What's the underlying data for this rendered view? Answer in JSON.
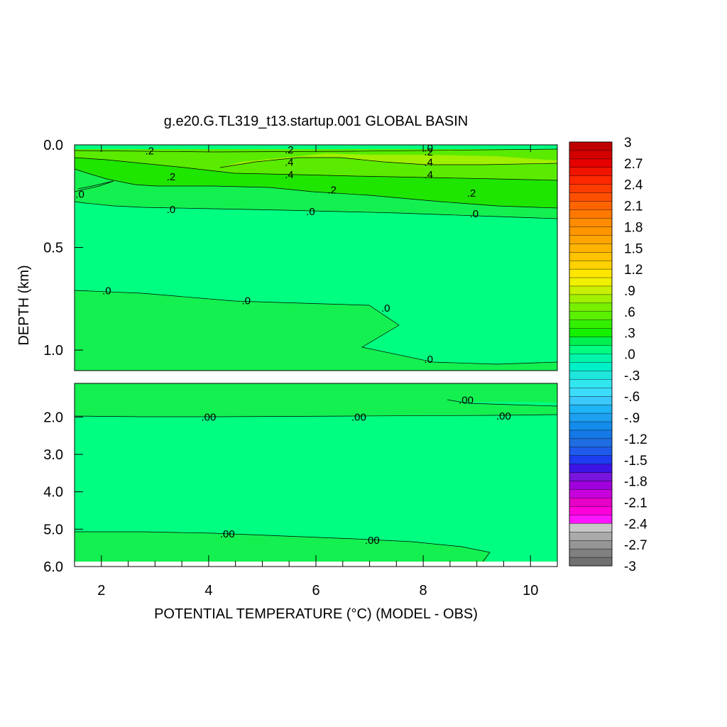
{
  "colors": {
    "cb_low_grays": [
      "#707070",
      "#808080",
      "#969696",
      "#aaaaaa",
      "#c8c8c8"
    ],
    "cb_negative": [
      "#ff14ff",
      "#ff00dc",
      "#e600c8",
      "#c800dc",
      "#a000dc",
      "#7814dc",
      "#3c14e6",
      "#1e3cf0",
      "#1e5aeb",
      "#1e6ee1",
      "#1478e6",
      "#148ceb",
      "#1ea0f0",
      "#1eb4f5",
      "#3cc8fa",
      "#3cdcfa",
      "#32e6f0",
      "#1ee6dc",
      "#00f0c8",
      "#00f5aa"
    ],
    "cb_positive": [
      "#00ff80",
      "#00f050",
      "#14f000",
      "#32f000",
      "#5af000",
      "#78f000",
      "#a0f000",
      "#c8f000",
      "#f0f000",
      "#ffe600",
      "#ffd200",
      "#ffc300",
      "#ffb400",
      "#ffa500",
      "#ff9600",
      "#ff8c00",
      "#ff7800",
      "#ff6400",
      "#ff5000",
      "#ff3c00",
      "#ff2800",
      "#f01400",
      "#e60000",
      "#d20000",
      "#be0000"
    ],
    "field_base": "#00ff80",
    "field_pos1": "#14f050",
    "field_pos2": "#1ee600",
    "field_pos3": "#5aeb00",
    "field_pos4": "#a0f000"
  },
  "chart_data": {
    "type": "contour",
    "title": "g.e20.G.TL319_t13.startup.001 GLOBAL BASIN",
    "xlabel": "POTENTIAL TEMPERATURE (°C) (MODEL - OBS)",
    "ylabel": "DEPTH (km)",
    "xlim": [
      1.5,
      10.5
    ],
    "x_ticks": [
      2,
      4,
      6,
      8,
      10
    ],
    "panels": [
      {
        "name": "upper",
        "ylim": [
          0.0,
          1.1
        ],
        "y_ticks": [
          0.0,
          0.5,
          1.0
        ],
        "y_tick_labels": [
          "0.0",
          "0.5",
          "1.0"
        ],
        "contour_labels": [
          {
            "text": ".2",
            "x": 2.9,
            "y": 0.03
          },
          {
            "text": ".2",
            "x": 5.5,
            "y": 0.025
          },
          {
            "text": ".0",
            "x": 8.1,
            "y": 0.015
          },
          {
            "text": ".2",
            "x": 8.1,
            "y": 0.035
          },
          {
            "text": ".4",
            "x": 5.5,
            "y": 0.085
          },
          {
            "text": ".4",
            "x": 8.1,
            "y": 0.085
          },
          {
            "text": ".4",
            "x": 5.5,
            "y": 0.145
          },
          {
            "text": ".4",
            "x": 8.1,
            "y": 0.145
          },
          {
            "text": ".2",
            "x": 3.3,
            "y": 0.155
          },
          {
            "text": ".2",
            "x": 6.3,
            "y": 0.22
          },
          {
            "text": ".2",
            "x": 8.9,
            "y": 0.235
          },
          {
            "text": ".0",
            "x": 1.6,
            "y": 0.24
          },
          {
            "text": ".0",
            "x": 3.3,
            "y": 0.315
          },
          {
            "text": ".0",
            "x": 5.9,
            "y": 0.325
          },
          {
            "text": ".0",
            "x": 8.95,
            "y": 0.335
          },
          {
            "text": ".0",
            "x": 2.1,
            "y": 0.71
          },
          {
            "text": ".0",
            "x": 4.7,
            "y": 0.76
          },
          {
            "text": ".0",
            "x": 7.3,
            "y": 0.795
          },
          {
            "text": ".0",
            "x": 8.1,
            "y": 1.045
          }
        ]
      },
      {
        "name": "lower",
        "ylim": [
          1.1,
          6.0
        ],
        "y_ticks": [
          2.0,
          3.0,
          4.0,
          5.0,
          6.0
        ],
        "y_tick_labels": [
          "2.0",
          "3.0",
          "4.0",
          "5.0",
          "6.0"
        ],
        "contour_labels": [
          {
            "text": ".00",
            "x": 8.8,
            "y": 1.55
          },
          {
            "text": ".00",
            "x": 4.0,
            "y": 2.0
          },
          {
            "text": ".00",
            "x": 6.8,
            "y": 2.0
          },
          {
            "text": ".00",
            "x": 9.5,
            "y": 1.97
          },
          {
            "text": ".00",
            "x": 4.35,
            "y": 5.13
          },
          {
            "text": ".00",
            "x": 7.05,
            "y": 5.3
          }
        ]
      }
    ],
    "colorbar": {
      "min": -3,
      "max": 3,
      "label_values": [
        "3",
        "2.7",
        "2.4",
        "2.1",
        "1.8",
        "1.5",
        "1.2",
        ".9",
        ".6",
        ".3",
        ".0",
        "-.3",
        "-.6",
        "-.9",
        "-1.2",
        "-1.5",
        "-1.8",
        "-2.1",
        "-2.4",
        "-2.7",
        "-3"
      ]
    }
  }
}
